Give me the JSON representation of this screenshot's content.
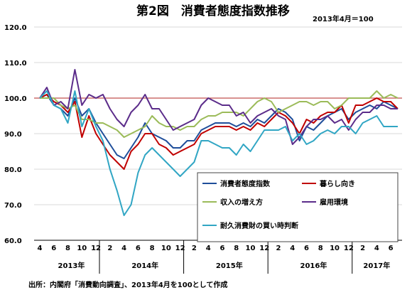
{
  "chart_data": {
    "type": "line",
    "title": "第2図　消費者態度指数推移",
    "base_note": "2013年4月＝100",
    "source": "出所：内閣府「消費動向調査」、2013年4月を100として作成",
    "ylim": [
      60,
      120
    ],
    "y_ticks": [
      "120.0",
      "110.0",
      "100.0",
      "90.0",
      "80.0",
      "70.0",
      "60.0"
    ],
    "x_tick_labels": [
      "4",
      "6",
      "8",
      "10",
      "12",
      "2",
      "4",
      "6",
      "8",
      "10",
      "12",
      "2",
      "4",
      "6",
      "8",
      "10",
      "12",
      "2",
      "4",
      "6",
      "8",
      "10",
      "12",
      "2",
      "4",
      "6"
    ],
    "years": [
      "2013年",
      "2014年",
      "2015年",
      "2016年",
      "2017年"
    ],
    "reference_line": {
      "value": 100,
      "color": "#c0504d"
    },
    "grid": true,
    "legend_position": "bottom-right",
    "x_start": "2013-04",
    "series": [
      {
        "name": "消費者態度指数",
        "color": "#1f4e9a",
        "values": [
          100,
          101,
          98,
          97,
          95,
          100,
          95,
          97,
          93,
          90,
          87,
          84,
          83,
          86,
          89,
          93,
          90,
          89,
          88,
          86,
          86,
          88,
          88,
          91,
          92,
          93,
          93,
          93,
          92,
          93,
          92,
          94,
          93,
          95,
          97,
          96,
          94,
          88,
          92,
          91,
          93,
          95,
          96,
          97,
          94,
          96,
          97,
          98,
          97,
          99,
          98,
          97
        ]
      },
      {
        "name": "暮らし向き",
        "color": "#c00000",
        "values": [
          100,
          101,
          99,
          98,
          96,
          99,
          89,
          95,
          90,
          87,
          84,
          82,
          80,
          85,
          87,
          90,
          90,
          87,
          86,
          84,
          85,
          86,
          87,
          90,
          91,
          92,
          92,
          92,
          91,
          92,
          91,
          93,
          92,
          94,
          96,
          95,
          93,
          90,
          94,
          93,
          95,
          96,
          96,
          98,
          93,
          98,
          98,
          99,
          100,
          99,
          99,
          97
        ]
      },
      {
        "name": "収入の増え方",
        "color": "#9bbb59",
        "values": [
          100,
          100,
          100,
          98,
          97,
          98,
          94,
          94,
          93,
          93,
          92,
          91,
          89,
          90,
          91,
          92,
          95,
          93,
          92,
          92,
          91,
          92,
          92,
          94,
          95,
          95,
          96,
          96,
          96,
          95,
          97,
          99,
          100,
          99,
          96,
          97,
          98,
          99,
          99,
          98,
          99,
          99,
          97,
          98,
          100,
          100,
          100,
          100,
          102,
          100,
          101,
          100
        ]
      },
      {
        "name": "雇用環境",
        "color": "#5b2c8a",
        "values": [
          100,
          103,
          98,
          99,
          97,
          108,
          98,
          101,
          100,
          101,
          97,
          94,
          92,
          96,
          98,
          101,
          97,
          97,
          94,
          91,
          92,
          93,
          94,
          98,
          100,
          99,
          98,
          98,
          95,
          96,
          93,
          95,
          96,
          97,
          95,
          94,
          87,
          89,
          92,
          94,
          94,
          95,
          93,
          94,
          91,
          94,
          96,
          96,
          98,
          98,
          97,
          97
        ]
      },
      {
        "name": "耐久消費財の買い時判断",
        "color": "#31a6c4",
        "values": [
          100,
          102,
          98,
          97,
          93,
          102,
          92,
          97,
          92,
          88,
          80,
          74,
          67,
          70,
          79,
          84,
          86,
          84,
          82,
          80,
          78,
          80,
          82,
          88,
          88,
          87,
          86,
          86,
          84,
          87,
          85,
          88,
          91,
          91,
          91,
          92,
          88,
          90,
          87,
          88,
          90,
          91,
          90,
          92,
          92,
          90,
          93,
          94,
          95,
          92,
          92,
          92
        ]
      }
    ]
  }
}
